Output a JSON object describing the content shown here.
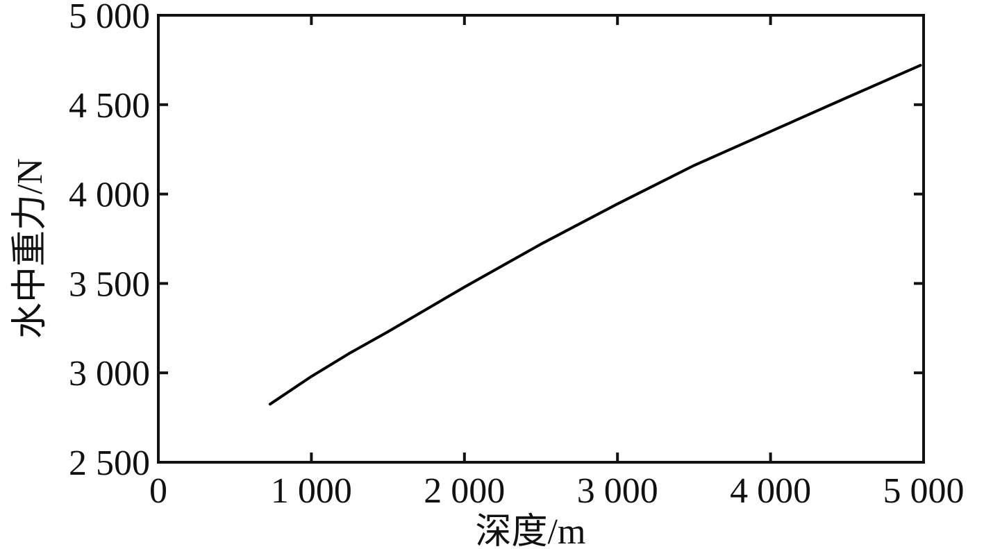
{
  "chart_data": {
    "type": "line",
    "title": "",
    "xlabel": "深度/m",
    "ylabel": "水中重力/N",
    "xlim": [
      0,
      5000
    ],
    "ylim": [
      2500,
      5000
    ],
    "x_ticks": [
      0,
      1000,
      2000,
      3000,
      4000,
      5000
    ],
    "x_tick_labels": [
      "0",
      "1 000",
      "2 000",
      "3 000",
      "4 000",
      "5 000"
    ],
    "y_ticks": [
      2500,
      3000,
      3500,
      4000,
      4500,
      5000
    ],
    "y_tick_labels": [
      "2 500",
      "3 000",
      "3 500",
      "4 000",
      "4 500",
      "5 000"
    ],
    "grid": false,
    "legend": "none",
    "series": [
      {
        "color": "#000000",
        "x": [
          730,
          1000,
          1250,
          1500,
          2000,
          2500,
          3000,
          3500,
          4000,
          4500,
          4980
        ],
        "y": [
          2825,
          2980,
          3110,
          3230,
          3480,
          3720,
          3945,
          4160,
          4350,
          4540,
          4720
        ]
      }
    ]
  }
}
